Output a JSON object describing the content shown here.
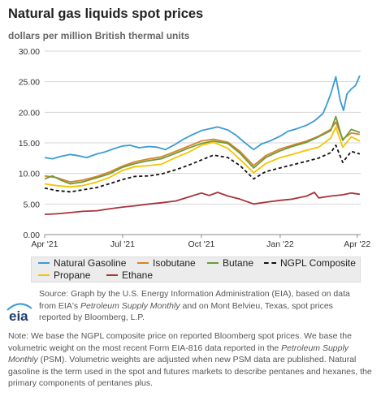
{
  "header": {
    "title": "Natural gas liquids spot prices",
    "subtitle": "dollars per million British thermal units"
  },
  "legend": {
    "items": [
      {
        "label": "Natural Gasoline",
        "color": "#3a9bd5",
        "style": "solid"
      },
      {
        "label": "Isobutane",
        "color": "#d9822b",
        "style": "solid"
      },
      {
        "label": "Butane",
        "color": "#6a9b3a",
        "style": "solid"
      },
      {
        "label": "NGPL Composite",
        "color": "#111111",
        "style": "dashed"
      },
      {
        "label": "Propane",
        "color": "#f5c400",
        "style": "solid"
      },
      {
        "label": "Ethane",
        "color": "#a8333a",
        "style": "solid"
      }
    ]
  },
  "footer": {
    "source_prefix": "Source: Graph by the U.S. Energy Information Administration (EIA), based on data from EIA's ",
    "source_italic1": "Petroleum Supply Monthly",
    "source_mid": " and on Mont Belvieu, Texas, spot prices reported by Bloomberg, L.P.",
    "note_1": "Note: We base the NGPL composite price on reported Bloomberg spot prices. We base the volumetric weight on the most recent Form EIA-816 data reported in the ",
    "note_italic": "Petroleum Supply Monthly",
    "note_2": " (PSM). Volumetric weights are adjusted when new PSM data are published. Natural gasoline is the term used in the spot and futures markets to describe pentanes and hexanes, the primary components of pentanes plus.",
    "logo_text": "eia"
  },
  "chart_data": {
    "type": "line",
    "title": "Natural gas liquids spot prices",
    "ylabel": "dollars per million British thermal units",
    "xlabel": "",
    "ylim": [
      0,
      30
    ],
    "yticks": [
      "0.00",
      "5.00",
      "10.00",
      "15.00",
      "20.00",
      "25.00",
      "30.00"
    ],
    "xlim": [
      "2021-04-01",
      "2022-04-05"
    ],
    "xticks": [
      {
        "label": "Apr '21",
        "date": "2021-04-01"
      },
      {
        "label": "Jul '21",
        "date": "2021-07-01"
      },
      {
        "label": "Oct '21",
        "date": "2021-10-01"
      },
      {
        "label": "Jan '22",
        "date": "2022-01-01"
      },
      {
        "label": "Apr '22",
        "date": "2022-04-01"
      }
    ],
    "grid": true,
    "legend_position": "bottom",
    "series": [
      {
        "name": "Natural Gasoline",
        "color": "#3a9bd5",
        "dashed": false,
        "points": [
          [
            "2021-04-01",
            12.6
          ],
          [
            "2021-04-10",
            12.4
          ],
          [
            "2021-04-20",
            12.8
          ],
          [
            "2021-05-01",
            13.1
          ],
          [
            "2021-05-10",
            12.9
          ],
          [
            "2021-05-20",
            12.6
          ],
          [
            "2021-06-01",
            13.2
          ],
          [
            "2021-06-10",
            13.5
          ],
          [
            "2021-06-20",
            14.0
          ],
          [
            "2021-07-01",
            14.5
          ],
          [
            "2021-07-10",
            14.6
          ],
          [
            "2021-07-20",
            14.2
          ],
          [
            "2021-08-01",
            14.4
          ],
          [
            "2021-08-10",
            14.3
          ],
          [
            "2021-08-20",
            13.9
          ],
          [
            "2021-09-01",
            14.8
          ],
          [
            "2021-09-10",
            15.6
          ],
          [
            "2021-09-20",
            16.3
          ],
          [
            "2021-10-01",
            17.0
          ],
          [
            "2021-10-10",
            17.3
          ],
          [
            "2021-10-20",
            17.6
          ],
          [
            "2021-11-01",
            17.1
          ],
          [
            "2021-11-10",
            16.3
          ],
          [
            "2021-11-20",
            15.1
          ],
          [
            "2021-12-01",
            13.9
          ],
          [
            "2021-12-10",
            14.8
          ],
          [
            "2021-12-20",
            15.3
          ],
          [
            "2022-01-01",
            16.1
          ],
          [
            "2022-01-10",
            16.9
          ],
          [
            "2022-01-20",
            17.3
          ],
          [
            "2022-02-01",
            17.9
          ],
          [
            "2022-02-10",
            18.6
          ],
          [
            "2022-02-20",
            19.8
          ],
          [
            "2022-02-25",
            21.5
          ],
          [
            "2022-03-01",
            23.0
          ],
          [
            "2022-03-07",
            25.8
          ],
          [
            "2022-03-12",
            22.0
          ],
          [
            "2022-03-16",
            20.3
          ],
          [
            "2022-03-20",
            23.0
          ],
          [
            "2022-03-25",
            23.8
          ],
          [
            "2022-03-30",
            24.4
          ],
          [
            "2022-04-04",
            26.0
          ]
        ]
      },
      {
        "name": "Isobutane",
        "color": "#d9822b",
        "dashed": false,
        "points": [
          [
            "2021-04-01",
            9.6
          ],
          [
            "2021-04-15",
            9.3
          ],
          [
            "2021-05-01",
            8.6
          ],
          [
            "2021-05-15",
            8.9
          ],
          [
            "2021-06-01",
            9.5
          ],
          [
            "2021-06-15",
            10.2
          ],
          [
            "2021-07-01",
            11.2
          ],
          [
            "2021-07-15",
            11.9
          ],
          [
            "2021-08-01",
            12.4
          ],
          [
            "2021-08-15",
            12.7
          ],
          [
            "2021-09-01",
            13.6
          ],
          [
            "2021-09-15",
            14.4
          ],
          [
            "2021-10-01",
            15.3
          ],
          [
            "2021-10-15",
            15.6
          ],
          [
            "2021-11-01",
            15.1
          ],
          [
            "2021-11-15",
            13.6
          ],
          [
            "2021-12-01",
            11.3
          ],
          [
            "2021-12-15",
            12.9
          ],
          [
            "2022-01-01",
            14.0
          ],
          [
            "2022-01-15",
            14.6
          ],
          [
            "2022-02-01",
            15.3
          ],
          [
            "2022-02-15",
            16.1
          ],
          [
            "2022-03-01",
            17.2
          ],
          [
            "2022-03-07",
            18.4
          ],
          [
            "2022-03-15",
            15.6
          ],
          [
            "2022-03-25",
            16.6
          ],
          [
            "2022-04-04",
            16.4
          ]
        ]
      },
      {
        "name": "Butane",
        "color": "#6a9b3a",
        "dashed": false,
        "points": [
          [
            "2021-04-01",
            9.1
          ],
          [
            "2021-04-10",
            9.6
          ],
          [
            "2021-04-20",
            8.9
          ],
          [
            "2021-05-01",
            8.3
          ],
          [
            "2021-05-15",
            8.6
          ],
          [
            "2021-06-01",
            9.3
          ],
          [
            "2021-06-15",
            9.9
          ],
          [
            "2021-07-01",
            11.0
          ],
          [
            "2021-07-15",
            11.6
          ],
          [
            "2021-08-01",
            12.1
          ],
          [
            "2021-08-15",
            12.4
          ],
          [
            "2021-09-01",
            13.3
          ],
          [
            "2021-09-15",
            14.1
          ],
          [
            "2021-10-01",
            14.9
          ],
          [
            "2021-10-15",
            15.3
          ],
          [
            "2021-11-01",
            14.9
          ],
          [
            "2021-11-15",
            13.3
          ],
          [
            "2021-12-01",
            10.9
          ],
          [
            "2021-12-15",
            12.6
          ],
          [
            "2022-01-01",
            13.7
          ],
          [
            "2022-01-15",
            14.4
          ],
          [
            "2022-02-01",
            15.1
          ],
          [
            "2022-02-15",
            16.0
          ],
          [
            "2022-03-01",
            17.0
          ],
          [
            "2022-03-07",
            19.3
          ],
          [
            "2022-03-15",
            15.4
          ],
          [
            "2022-03-25",
            17.2
          ],
          [
            "2022-04-04",
            16.7
          ]
        ]
      },
      {
        "name": "NGPL Composite",
        "color": "#111111",
        "dashed": true,
        "points": [
          [
            "2021-04-01",
            7.6
          ],
          [
            "2021-04-15",
            7.2
          ],
          [
            "2021-05-01",
            7.0
          ],
          [
            "2021-05-15",
            7.3
          ],
          [
            "2021-06-01",
            7.7
          ],
          [
            "2021-06-15",
            8.3
          ],
          [
            "2021-07-01",
            9.0
          ],
          [
            "2021-07-15",
            9.5
          ],
          [
            "2021-08-01",
            9.6
          ],
          [
            "2021-08-15",
            9.9
          ],
          [
            "2021-09-01",
            10.6
          ],
          [
            "2021-09-15",
            11.3
          ],
          [
            "2021-10-01",
            12.2
          ],
          [
            "2021-10-15",
            13.0
          ],
          [
            "2021-11-01",
            12.6
          ],
          [
            "2021-11-15",
            11.3
          ],
          [
            "2021-12-01",
            9.1
          ],
          [
            "2021-12-15",
            10.3
          ],
          [
            "2022-01-01",
            10.9
          ],
          [
            "2022-01-15",
            11.4
          ],
          [
            "2022-02-01",
            12.0
          ],
          [
            "2022-02-15",
            12.5
          ],
          [
            "2022-03-01",
            13.4
          ],
          [
            "2022-03-07",
            14.6
          ],
          [
            "2022-03-15",
            11.8
          ],
          [
            "2022-03-25",
            13.6
          ],
          [
            "2022-04-04",
            13.2
          ]
        ]
      },
      {
        "name": "Propane",
        "color": "#f5c400",
        "dashed": false,
        "points": [
          [
            "2021-04-01",
            8.3
          ],
          [
            "2021-04-15",
            8.0
          ],
          [
            "2021-05-01",
            7.8
          ],
          [
            "2021-05-15",
            8.0
          ],
          [
            "2021-06-01",
            8.6
          ],
          [
            "2021-06-15",
            9.3
          ],
          [
            "2021-07-01",
            10.5
          ],
          [
            "2021-07-15",
            11.1
          ],
          [
            "2021-08-01",
            11.3
          ],
          [
            "2021-08-15",
            11.5
          ],
          [
            "2021-09-01",
            12.6
          ],
          [
            "2021-09-15",
            13.4
          ],
          [
            "2021-10-01",
            14.6
          ],
          [
            "2021-10-15",
            15.1
          ],
          [
            "2021-11-01",
            14.1
          ],
          [
            "2021-11-15",
            12.3
          ],
          [
            "2021-12-01",
            10.1
          ],
          [
            "2021-12-15",
            11.6
          ],
          [
            "2022-01-01",
            12.6
          ],
          [
            "2022-01-15",
            13.1
          ],
          [
            "2022-02-01",
            13.8
          ],
          [
            "2022-02-15",
            14.3
          ],
          [
            "2022-03-01",
            15.8
          ],
          [
            "2022-03-07",
            17.6
          ],
          [
            "2022-03-15",
            14.3
          ],
          [
            "2022-03-25",
            16.0
          ],
          [
            "2022-04-04",
            15.3
          ]
        ]
      },
      {
        "name": "Ethane",
        "color": "#a8333a",
        "dashed": false,
        "points": [
          [
            "2021-04-01",
            3.3
          ],
          [
            "2021-04-15",
            3.4
          ],
          [
            "2021-05-01",
            3.6
          ],
          [
            "2021-05-15",
            3.8
          ],
          [
            "2021-06-01",
            3.9
          ],
          [
            "2021-06-15",
            4.2
          ],
          [
            "2021-07-01",
            4.5
          ],
          [
            "2021-07-15",
            4.7
          ],
          [
            "2021-08-01",
            5.0
          ],
          [
            "2021-08-15",
            5.2
          ],
          [
            "2021-09-01",
            5.5
          ],
          [
            "2021-09-15",
            6.1
          ],
          [
            "2021-10-01",
            6.8
          ],
          [
            "2021-10-10",
            6.4
          ],
          [
            "2021-10-20",
            6.9
          ],
          [
            "2021-11-01",
            6.3
          ],
          [
            "2021-11-15",
            5.8
          ],
          [
            "2021-12-01",
            5.0
          ],
          [
            "2021-12-15",
            5.3
          ],
          [
            "2022-01-01",
            5.6
          ],
          [
            "2022-01-15",
            5.8
          ],
          [
            "2022-02-01",
            6.3
          ],
          [
            "2022-02-10",
            6.9
          ],
          [
            "2022-02-15",
            6.0
          ],
          [
            "2022-03-01",
            6.3
          ],
          [
            "2022-03-15",
            6.5
          ],
          [
            "2022-03-25",
            6.8
          ],
          [
            "2022-04-04",
            6.6
          ]
        ]
      }
    ]
  }
}
